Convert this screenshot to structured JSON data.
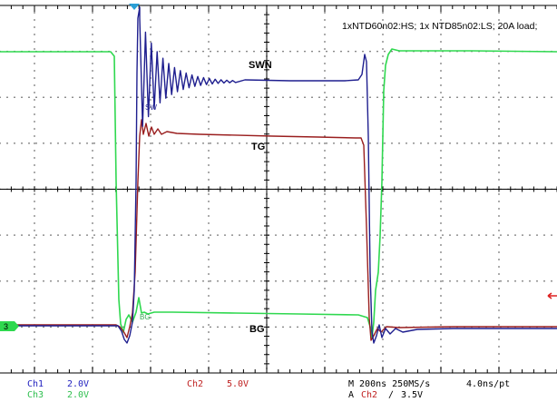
{
  "annotation": "1xNTD60n02:HS; 1x NTD85n02:LS; 20A load;",
  "trace_labels": {
    "swn": "SWN",
    "tg": "TG",
    "bg": "BG",
    "swn_small": "SW",
    "bg_small": "BG"
  },
  "ground_marker": "3",
  "status": {
    "ch1_name": "Ch1",
    "ch1_scale": "2.0V",
    "ch2_name": "Ch2",
    "ch2_scale": "5.0V",
    "ch3_name": "Ch3",
    "ch3_scale": "2.0V",
    "timebase": "M 200ns 250MS/s",
    "resolution": "4.0ns/pt",
    "trigger_prefix": "A",
    "trigger_channel": "Ch2",
    "trigger_slope": "∕",
    "trigger_level": "3.5V"
  },
  "colors": {
    "ch1": "#1f1f8f",
    "ch2": "#9a1f1f",
    "ch3": "#2fd84f",
    "marker_bg": "#2fd84f",
    "grid": "#000000",
    "status_ch1": "#1f1fbf",
    "status_ch2": "#bf1f1f",
    "status_ch3": "#2fbf4f"
  },
  "chart_data": {
    "type": "line",
    "title": "",
    "xlabel": "",
    "ylabel": "",
    "grid": true,
    "divisions": {
      "x": 10,
      "y": 8
    },
    "xlim": [
      0,
      10
    ],
    "ylim": [
      0,
      8
    ],
    "series": [
      {
        "name": "SWN",
        "channel": "Ch1",
        "x": [
          0,
          0.8,
          0.9,
          0.95,
          1.0,
          1.1,
          1.3,
          1.6,
          2.0,
          3.0,
          4.0,
          5.0,
          6.0,
          6.5,
          6.7,
          6.8,
          6.95,
          7.0,
          7.05,
          7.15,
          7.3,
          7.5,
          8.0,
          9.0,
          10.0
        ],
        "y": [
          3.3,
          3.3,
          3.35,
          3.2,
          3.45,
          3.2,
          3.3,
          3.3,
          3.3,
          3.3,
          3.3,
          3.3,
          3.3,
          3.28,
          3.25,
          3.15,
          2.9,
          3.05,
          3.1,
          3.22,
          3.25,
          3.25,
          3.27,
          3.28,
          3.28
        ],
        "notes": "x in divisions; drawn procedurally with ringing"
      },
      {
        "name": "TG",
        "channel": "Ch2",
        "x": [
          0,
          0.8,
          0.9,
          1.0,
          3.0,
          6.5,
          6.7,
          10.0
        ],
        "y": [
          3.3,
          3.3,
          3.2,
          3.25,
          3.3,
          3.3,
          3.3,
          3.3
        ]
      },
      {
        "name": "BG",
        "channel": "Ch3",
        "x": [
          0,
          0.7,
          0.8,
          0.9,
          1.0,
          1.2,
          1.5,
          2.0,
          6.5,
          6.7,
          10.0
        ],
        "y": [
          7.0,
          7.0,
          3.3,
          3.2,
          3.4,
          3.3,
          3.3,
          3.3,
          3.3,
          3.3,
          3.3
        ]
      }
    ]
  }
}
